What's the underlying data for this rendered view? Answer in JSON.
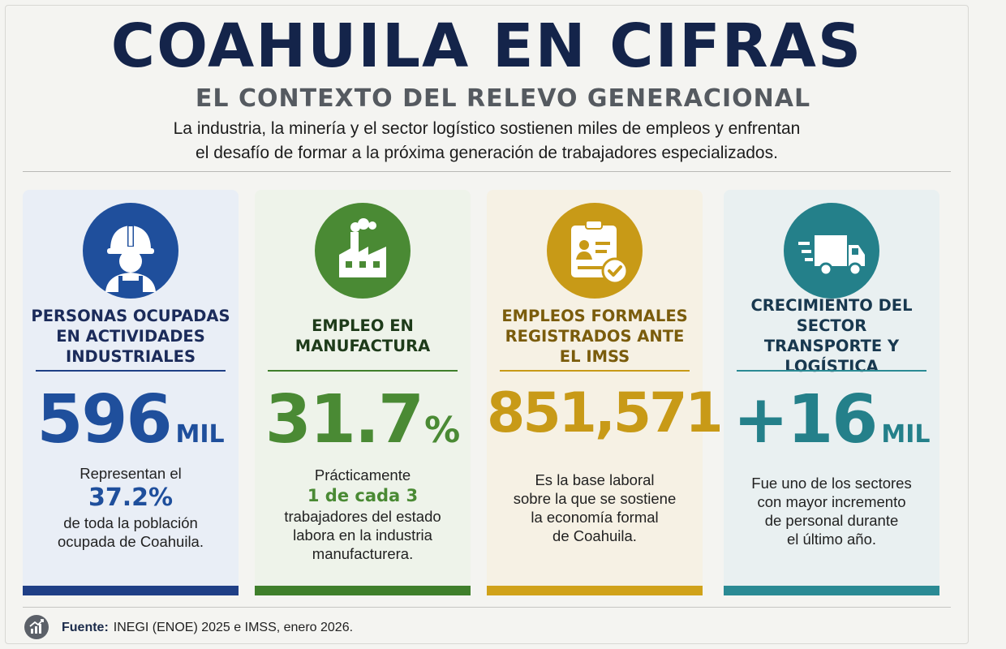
{
  "header": {
    "title": "COAHUILA EN CIFRAS",
    "subtitle": "EL CONTEXTO DEL RELEVO GENERACIONAL",
    "intro_line1": "La industria, la minería y el sector logístico sostienen miles de empleos y enfrentan",
    "intro_line2": "el desafío de formar a la próxima generación de trabajadores especializados."
  },
  "cards": [
    {
      "icon": "worker-hardhat-icon",
      "color": "#1f4f9c",
      "bar_color": "#1f3f86",
      "title_line1": "PERSONAS OCUPADAS",
      "title_line2": "EN ACTIVIDADES",
      "title_line3": "INDUSTRIALES",
      "value": "596",
      "unit": "MIL",
      "desc_line1": "Representan el",
      "accent": "37.2%",
      "desc_line2": "de toda la población",
      "desc_line3": "ocupada de Coahuila."
    },
    {
      "icon": "factory-icon",
      "color": "#4a8a34",
      "bar_color": "#3f7f2b",
      "title_line1": "EMPLEO EN",
      "title_line2": "MANUFACTURA",
      "value": "31.7",
      "unit": "%",
      "desc_line1": "Prácticamente",
      "accent": "1 de cada 3",
      "desc_line2": "trabajadores del estado",
      "desc_line3": "labora en la industria",
      "desc_line4": "manufacturera."
    },
    {
      "icon": "id-badge-check-icon",
      "color": "#c89a17",
      "title_color": "#7a5c0c",
      "bar_color": "#d0a21a",
      "title_line1": "EMPLEOS FORMALES",
      "title_line2": "REGISTRADOS ANTE",
      "title_line3": "EL IMSS",
      "value": "851,571",
      "desc_line1": "Es la base laboral",
      "desc_line2": "sobre la que se sostiene",
      "desc_line3": "la economía formal",
      "desc_line4": "de Coahuila."
    },
    {
      "icon": "delivery-truck-icon",
      "color": "#24808a",
      "title_color": "#18384f",
      "bar_color": "#2a8a94",
      "title_line1": "CRECIMIENTO DEL SECTOR",
      "title_line2": "TRANSPORTE Y LOGÍSTICA",
      "value": "+16",
      "unit": "MIL",
      "desc_line1": "Fue uno de los sectores",
      "desc_line2": "con mayor incremento",
      "desc_line3": "de personal durante",
      "desc_line4": "el último año."
    }
  ],
  "footer": {
    "icon": "chart-growth-icon",
    "source_label": "Fuente:",
    "source_text": "INEGI (ENOE) 2025 e IMSS, enero 2026."
  }
}
